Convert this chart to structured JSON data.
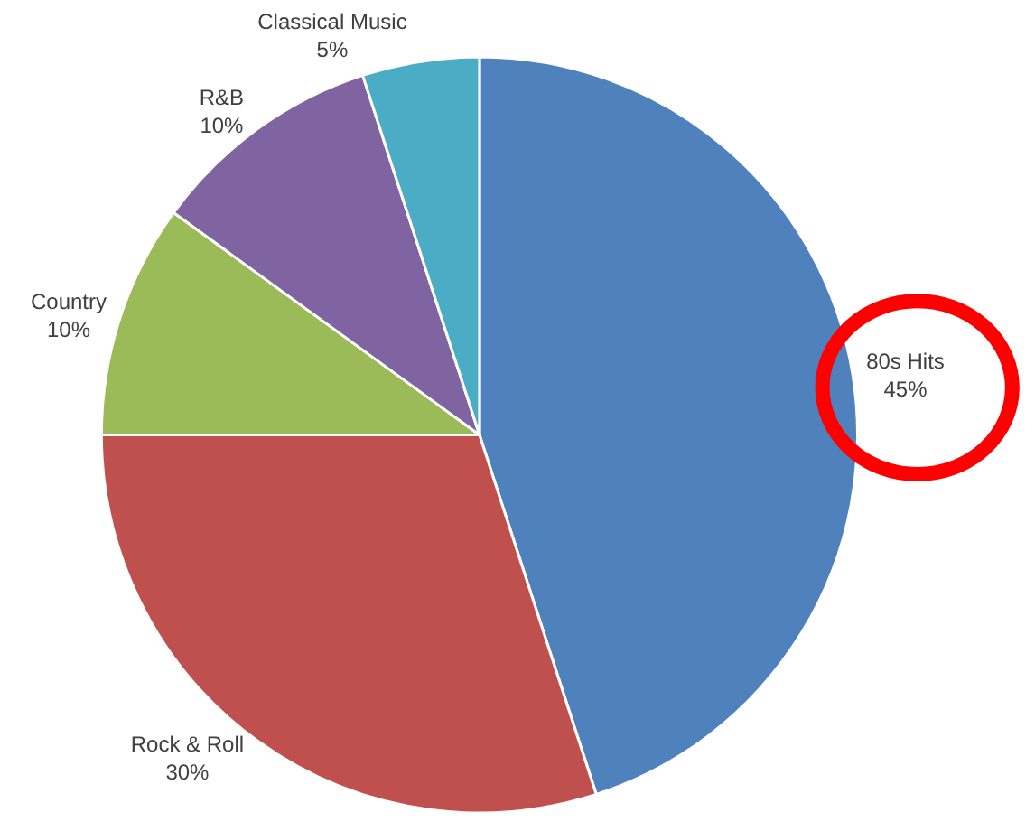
{
  "chart_data": {
    "type": "pie",
    "categories": [
      "80s Hits",
      "Rock & Roll",
      "Country",
      "R&B",
      "Classical Music"
    ],
    "values": [
      45,
      30,
      10,
      10,
      5
    ],
    "value_labels": [
      "45%",
      "30%",
      "10%",
      "10%",
      "5%"
    ],
    "colors": [
      "#4f81bd",
      "#c0504d",
      "#9bbb59",
      "#8064a2",
      "#4bacc6"
    ],
    "legend": false
  }
}
